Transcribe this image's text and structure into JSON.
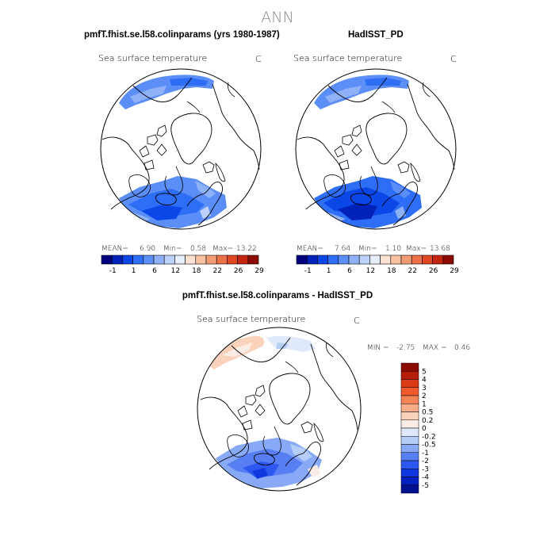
{
  "figure": {
    "title": "ANN"
  },
  "panels": [
    {
      "heading": "pmfT.fhist.se.l58.colinparams (yrs 1980-1987)",
      "variable": "Sea surface temperature",
      "units": "C",
      "stats": {
        "mean_label": "MEAN=",
        "mean": "6.90",
        "min_label": "Min=",
        "min": "0.58",
        "max_label": "Max=",
        "max": "13.22"
      }
    },
    {
      "heading": "HadISST_PD",
      "variable": "Sea surface temperature",
      "units": "C",
      "stats": {
        "mean_label": "MEAN=",
        "mean": "7.64",
        "min_label": "Min=",
        "min": "1.10",
        "max_label": "Max=",
        "max": "13.68"
      }
    },
    {
      "heading": "pmfT.fhist.se.l58.colinparams - HadISST_PD",
      "variable": "Sea surface temperature",
      "units": "C",
      "stats": {
        "min_label": "MIN =",
        "min": "-2.75",
        "max_label": "MAX =",
        "max": "0.46"
      }
    }
  ],
  "colorbar_top": {
    "colors": [
      "#00007f",
      "#0022b8",
      "#0b46e6",
      "#2e6df5",
      "#5c8ef7",
      "#8eb1f8",
      "#bcd2fb",
      "#e6eefc",
      "#fbe2d3",
      "#f8c2a3",
      "#f29c73",
      "#ec7048",
      "#e04722",
      "#c42410",
      "#8c0a04"
    ],
    "tick_labels": [
      "-1",
      "1",
      "6",
      "12",
      "18",
      "22",
      "26",
      "29"
    ]
  },
  "colorbar_diff": {
    "colors": [
      "#8c0a04",
      "#b71e0a",
      "#dc3a14",
      "#ee5a2c",
      "#f38257",
      "#f8ad8a",
      "#fbd3bd",
      "#fbece6",
      "#dfe9fb",
      "#b6cdf8",
      "#87a9f6",
      "#577ff3",
      "#2d58ef",
      "#1138e0",
      "#0221bf",
      "#00108f"
    ],
    "tick_labels": [
      "5",
      "4",
      "3",
      "2",
      "1",
      "0.5",
      "0.2",
      "0",
      "-0.2",
      "-0.5",
      "-1",
      "-2",
      "-3",
      "-4",
      "-5"
    ]
  }
}
